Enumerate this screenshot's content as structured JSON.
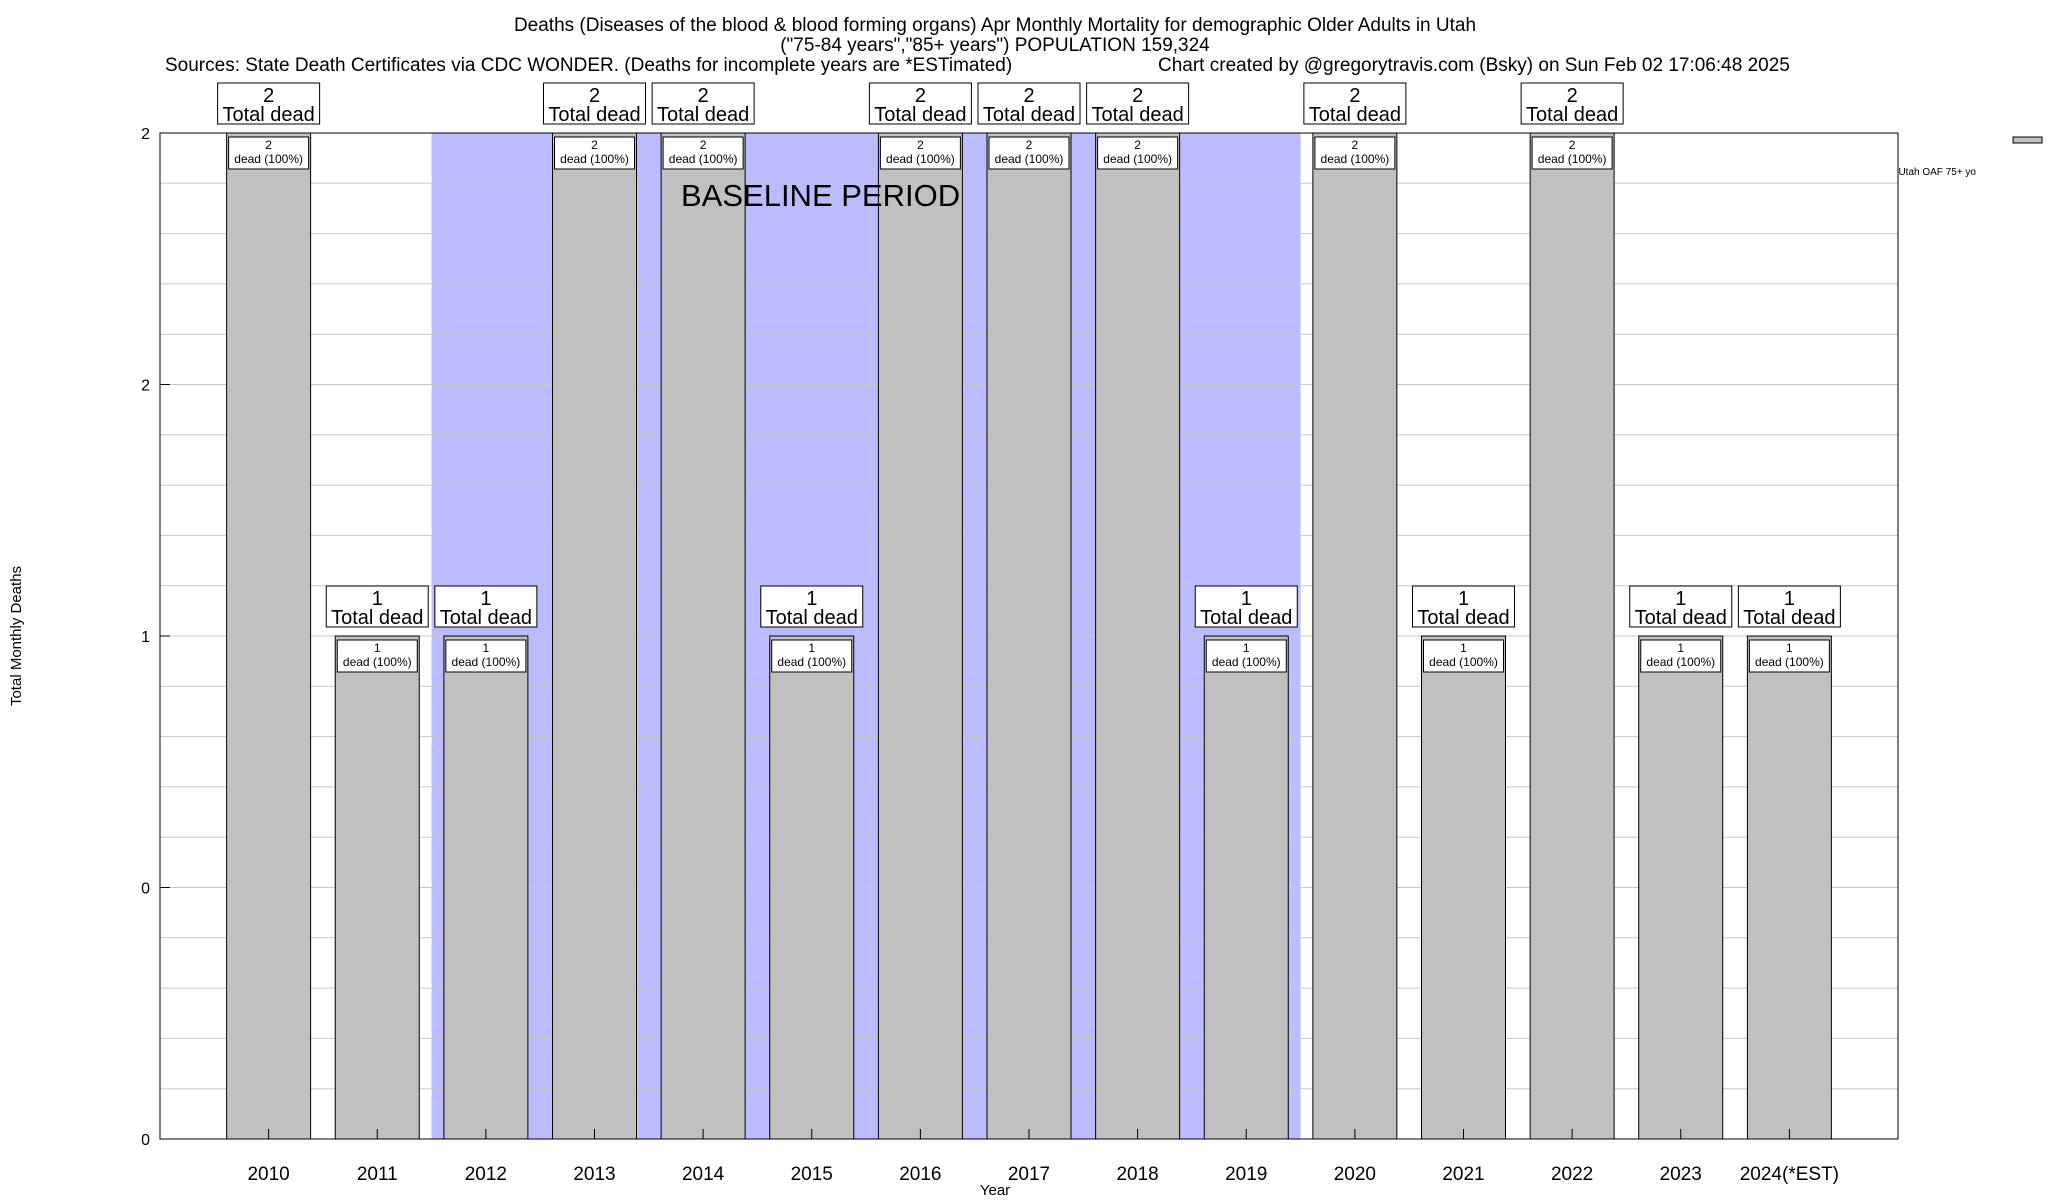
{
  "chart_data": {
    "type": "bar",
    "title_lines": [
      "Deaths (Diseases of the blood & blood forming organs) Apr Monthly Mortality for demographic Older Adults in Utah",
      "(\"75-84 years\",\"85+ years\") POPULATION 159,324"
    ],
    "sources": "Sources: State Death Certificates via CDC WONDER. (Deaths for incomplete years are *ESTimated)",
    "credit": "Chart created by @gregorytravis.com (Bsky) on Sun Feb 02 17:06:48 2025",
    "xlabel": "Year",
    "ylabel": "Total Monthly Deaths",
    "baseline_label": "BASELINE PERIOD",
    "baseline_years": [
      "2012",
      "2019"
    ],
    "legend": {
      "label": "Utah OAF 75+ yo",
      "color": "#c0c0c0",
      "position": "top-right"
    },
    "categories": [
      "2010",
      "2011",
      "2012",
      "2013",
      "2014",
      "2015",
      "2016",
      "2017",
      "2018",
      "2019",
      "2020",
      "2021",
      "2022",
      "2023",
      "2024(*EST)"
    ],
    "values": [
      2,
      1,
      1,
      2,
      2,
      1,
      2,
      2,
      2,
      1,
      2,
      1,
      2,
      1,
      1
    ],
    "ylim": [
      0,
      2
    ],
    "yticks": [
      {
        "value": 0,
        "label": "0"
      },
      {
        "value": 0.5,
        "label": "0"
      },
      {
        "value": 1,
        "label": "1"
      },
      {
        "value": 1.5,
        "label": "2"
      },
      {
        "value": 2,
        "label": "2"
      }
    ],
    "grid": true,
    "total_label_suffix": "Total dead",
    "inner_label_suffix": "dead (100%)",
    "colors": {
      "bar": "#c0c0c0",
      "baseline": "#bbbbff",
      "grid": "#c8c8c8"
    }
  }
}
